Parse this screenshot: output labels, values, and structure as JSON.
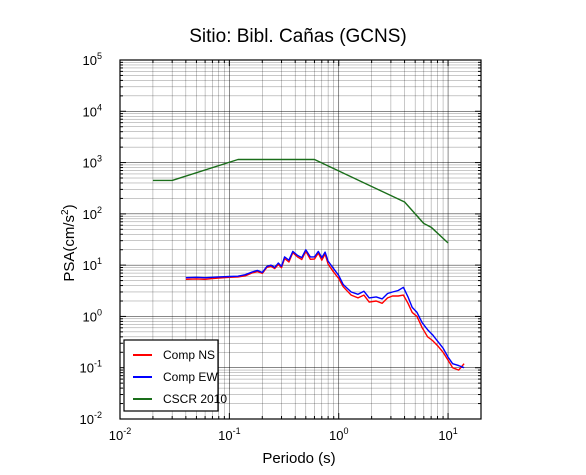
{
  "chart_data": {
    "type": "line",
    "title": "Sitio: Bibl. Cañas (GCNS)",
    "xlabel": "Periodo (s)",
    "ylabel_main": "PSA(cm/s",
    "ylabel_sup": "2",
    "ylabel_close": ")",
    "xscale": "log",
    "yscale": "log",
    "xlim": [
      0.01,
      20
    ],
    "ylim": [
      0.01,
      100000
    ],
    "grid": true,
    "legend_position": "bottom-left",
    "x_ticks": [
      {
        "base": "10",
        "exp": "-2"
      },
      {
        "base": "10",
        "exp": "-1"
      },
      {
        "base": "10",
        "exp": "0"
      },
      {
        "base": "10",
        "exp": "1"
      }
    ],
    "y_ticks": [
      {
        "base": "10",
        "exp": "-2"
      },
      {
        "base": "10",
        "exp": "-1"
      },
      {
        "base": "10",
        "exp": "0"
      },
      {
        "base": "10",
        "exp": "1"
      },
      {
        "base": "10",
        "exp": "2"
      },
      {
        "base": "10",
        "exp": "3"
      },
      {
        "base": "10",
        "exp": "4"
      },
      {
        "base": "10",
        "exp": "5"
      }
    ],
    "series": [
      {
        "name": "Comp NS",
        "color": "#ff0000",
        "x": [
          0.04,
          0.05,
          0.06,
          0.07,
          0.08,
          0.1,
          0.12,
          0.14,
          0.16,
          0.18,
          0.2,
          0.22,
          0.24,
          0.26,
          0.28,
          0.3,
          0.32,
          0.35,
          0.38,
          0.42,
          0.46,
          0.5,
          0.55,
          0.6,
          0.65,
          0.7,
          0.75,
          0.8,
          0.9,
          1.0,
          1.1,
          1.2,
          1.3,
          1.5,
          1.7,
          1.9,
          2.2,
          2.5,
          2.8,
          3.1,
          3.5,
          3.9,
          4.3,
          4.7,
          5.2,
          5.8,
          6.5,
          7.2,
          8,
          9,
          10,
          11,
          12.5,
          14
        ],
        "y": [
          5.3,
          5.4,
          5.3,
          5.5,
          5.6,
          5.8,
          5.9,
          6.2,
          7,
          7.5,
          6.9,
          9,
          9.5,
          8.6,
          10.3,
          8.9,
          13.5,
          11.5,
          17.5,
          14.5,
          12.9,
          18.7,
          13,
          13.2,
          17.2,
          12.5,
          16.5,
          10.5,
          7.3,
          5.5,
          3.8,
          3.1,
          2.6,
          2.3,
          2.6,
          1.9,
          2,
          1.8,
          2.3,
          2.5,
          2.5,
          2.6,
          1.8,
          1.2,
          1,
          0.6,
          0.4,
          0.34,
          0.27,
          0.2,
          0.14,
          0.1,
          0.09,
          0.12
        ]
      },
      {
        "name": "Comp EW",
        "color": "#0000ff",
        "x": [
          0.04,
          0.05,
          0.06,
          0.07,
          0.08,
          0.1,
          0.12,
          0.14,
          0.16,
          0.18,
          0.2,
          0.22,
          0.24,
          0.26,
          0.28,
          0.3,
          0.32,
          0.35,
          0.38,
          0.42,
          0.46,
          0.5,
          0.55,
          0.6,
          0.65,
          0.7,
          0.75,
          0.8,
          0.9,
          1.0,
          1.1,
          1.2,
          1.3,
          1.5,
          1.7,
          1.9,
          2.2,
          2.5,
          2.8,
          3.1,
          3.5,
          3.9,
          4.3,
          4.7,
          5.2,
          5.8,
          6.5,
          7.2,
          8,
          9,
          10,
          11,
          12.5,
          14
        ],
        "y": [
          5.7,
          5.8,
          5.7,
          5.8,
          5.9,
          6,
          6.1,
          6.5,
          7.3,
          7.9,
          7.2,
          9.4,
          10,
          9,
          11,
          9.5,
          14.5,
          12.5,
          18.5,
          15.5,
          14,
          20,
          14.5,
          14.5,
          18.5,
          14,
          18,
          12,
          8.5,
          6.3,
          4.2,
          3.5,
          3,
          2.7,
          3.1,
          2.3,
          2.4,
          2.2,
          2.8,
          3,
          3.2,
          3.7,
          2.4,
          1.5,
          1.2,
          0.75,
          0.55,
          0.44,
          0.33,
          0.24,
          0.16,
          0.12,
          0.11,
          0.1
        ]
      },
      {
        "name": "CSCR 2010",
        "color": "#1a6e1a",
        "x": [
          0.02,
          0.03,
          0.12,
          0.6,
          4,
          6,
          7,
          10
        ],
        "y": [
          450,
          450,
          1150,
          1150,
          170,
          65,
          55,
          27
        ]
      }
    ]
  }
}
